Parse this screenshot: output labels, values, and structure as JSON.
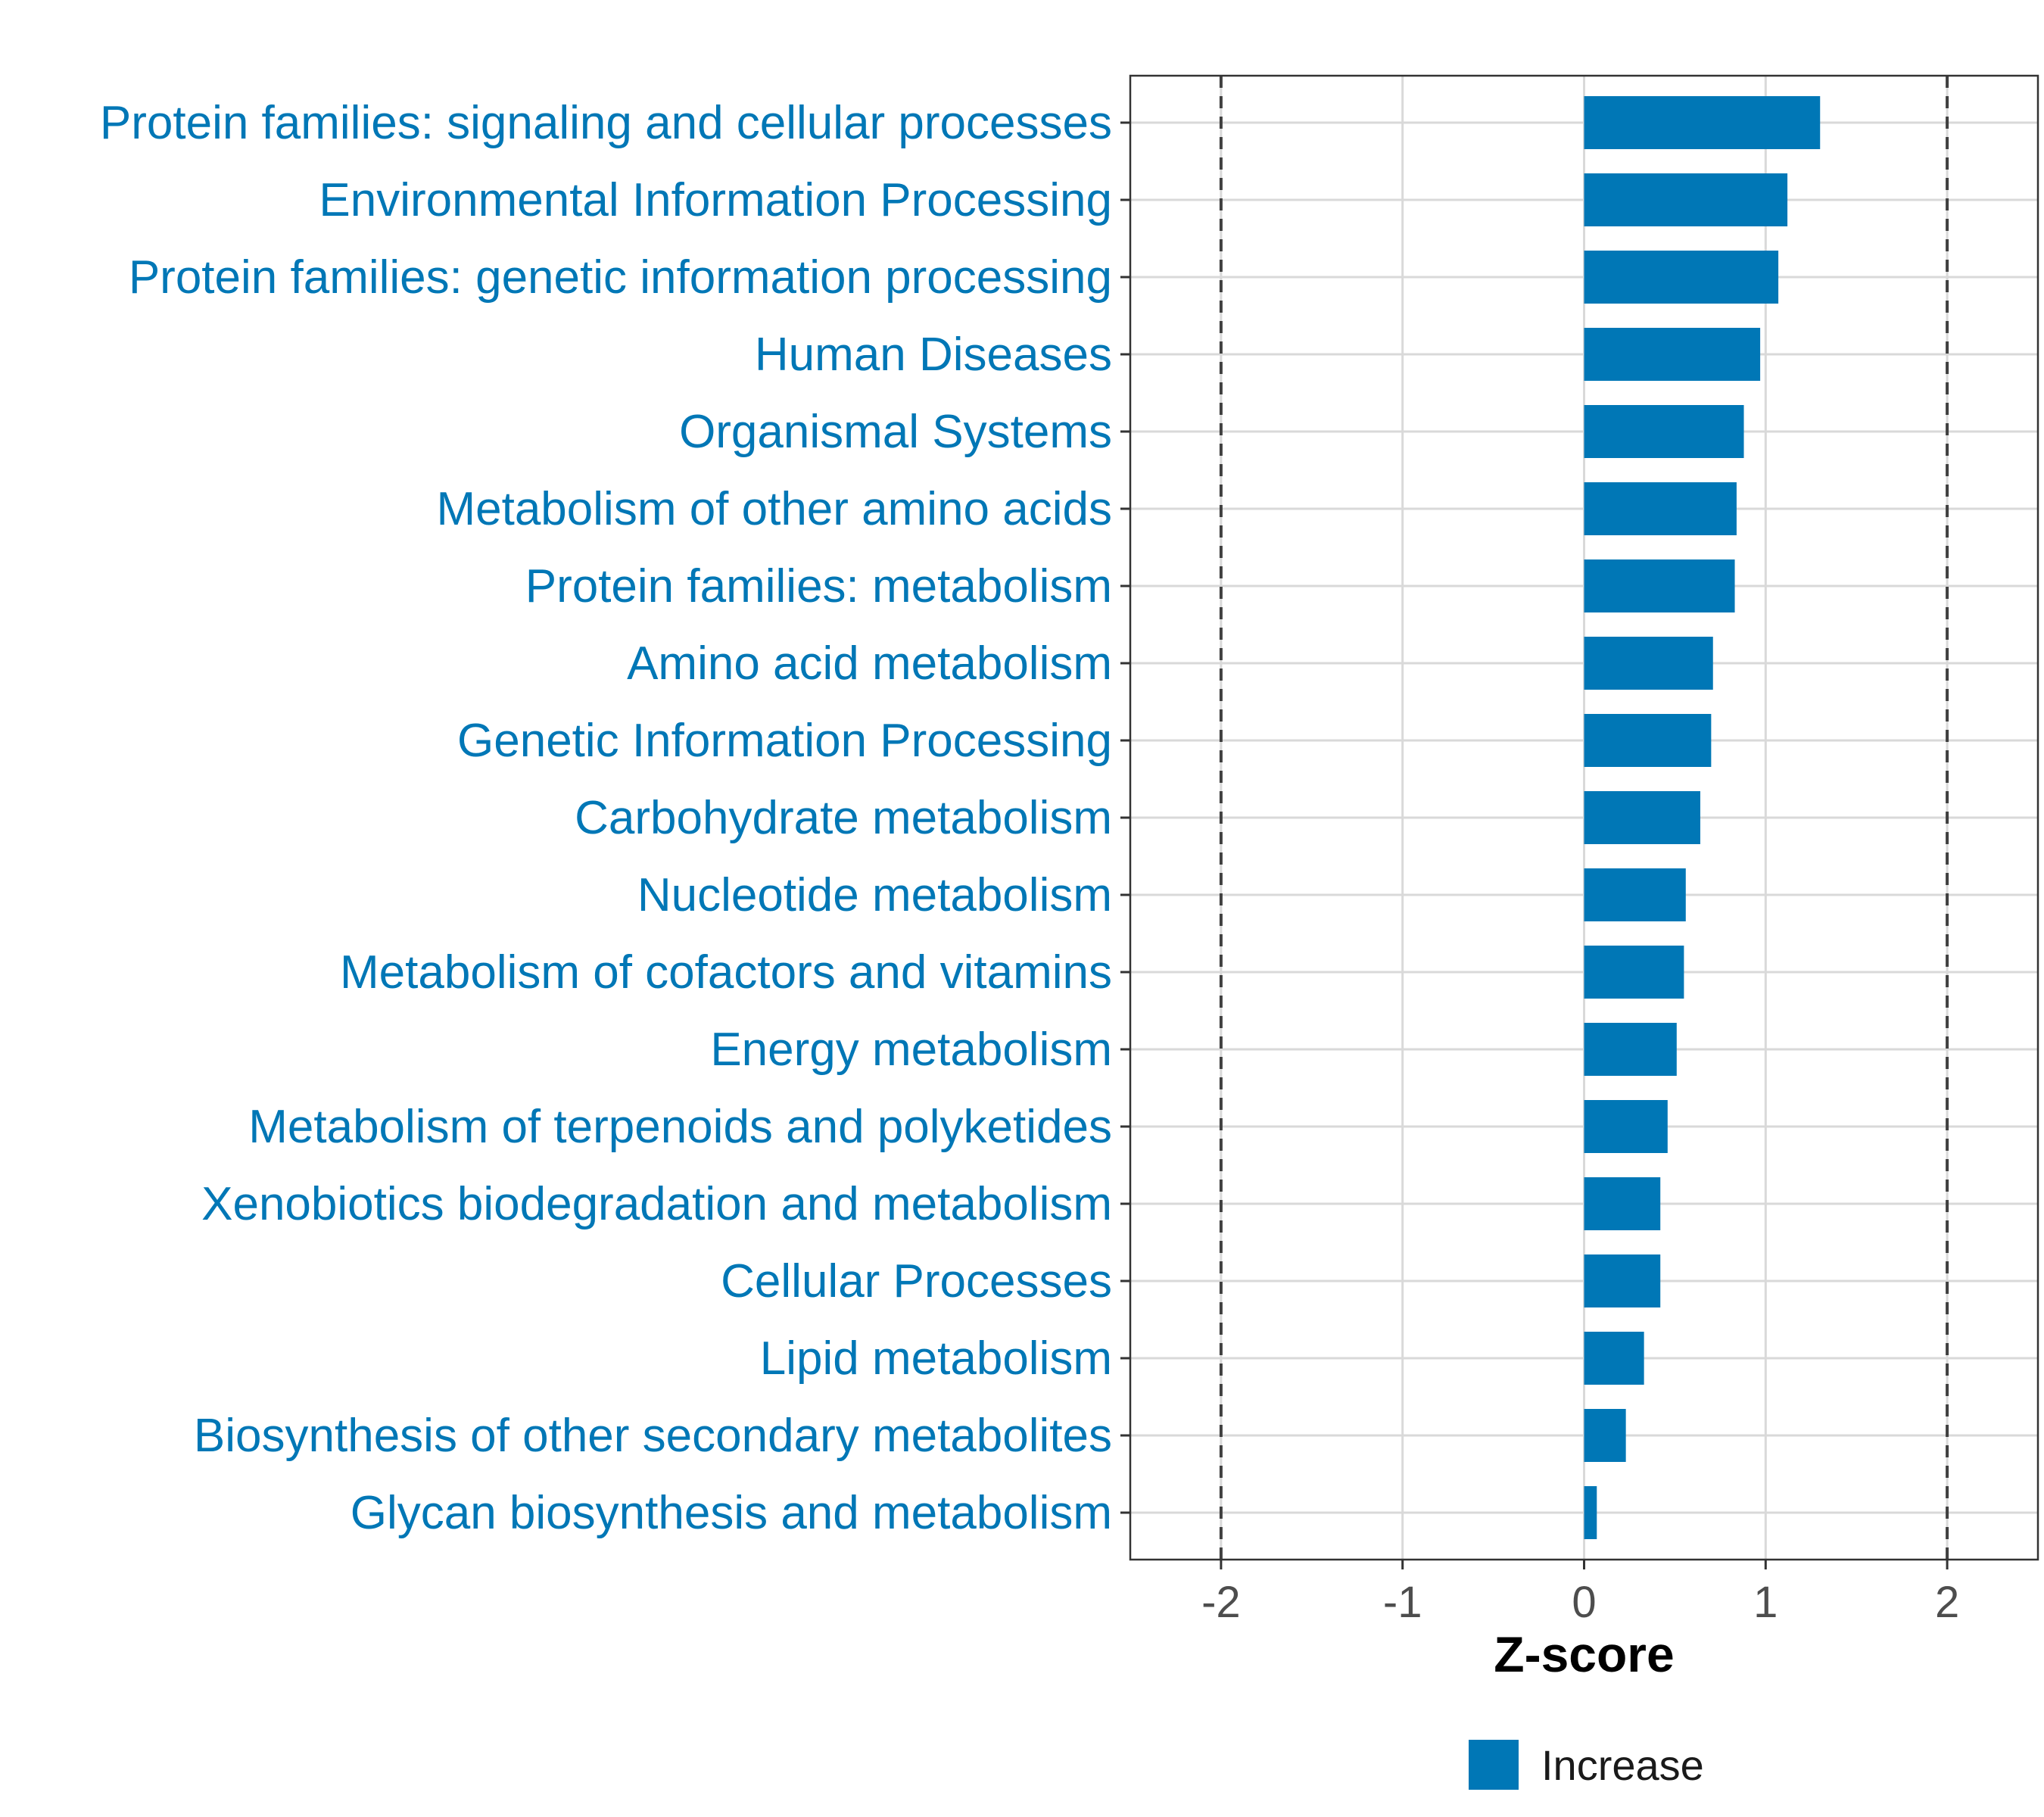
{
  "chart_data": {
    "type": "bar",
    "orientation": "horizontal",
    "categories": [
      "Protein families: signaling and cellular processes",
      "Environmental Information Processing",
      "Protein families: genetic information processing",
      "Human Diseases",
      "Organismal Systems",
      "Metabolism of other amino acids",
      "Protein families: metabolism",
      "Amino acid metabolism",
      "Genetic Information Processing",
      "Carbohydrate metabolism",
      "Nucleotide metabolism",
      "Metabolism of cofactors and vitamins",
      "Energy metabolism",
      "Metabolism of terpenoids and polyketides",
      "Xenobiotics biodegradation and metabolism",
      "Cellular Processes",
      "Lipid metabolism",
      "Biosynthesis of other secondary metabolites",
      "Glycan biosynthesis and metabolism"
    ],
    "values": [
      1.3,
      1.12,
      1.07,
      0.97,
      0.88,
      0.84,
      0.83,
      0.71,
      0.7,
      0.64,
      0.56,
      0.55,
      0.51,
      0.46,
      0.42,
      0.42,
      0.33,
      0.23,
      0.07
    ],
    "xlabel": "Z-score",
    "ylabel": "",
    "xlim": [
      -2.5,
      2.5
    ],
    "xticks": [
      -2,
      -1,
      0,
      1,
      2
    ],
    "xtick_labels": [
      "-2",
      "-1",
      "0",
      "1",
      "2"
    ],
    "reference_lines": [
      -2,
      2
    ],
    "grid": true,
    "legend": {
      "position": "bottom",
      "entries": [
        "Increase"
      ]
    },
    "colors": {
      "bar": "#0077b6",
      "label": "#0077b6",
      "grid": "#d9d9d9",
      "refline": "#404040",
      "axis": "#333333"
    }
  }
}
